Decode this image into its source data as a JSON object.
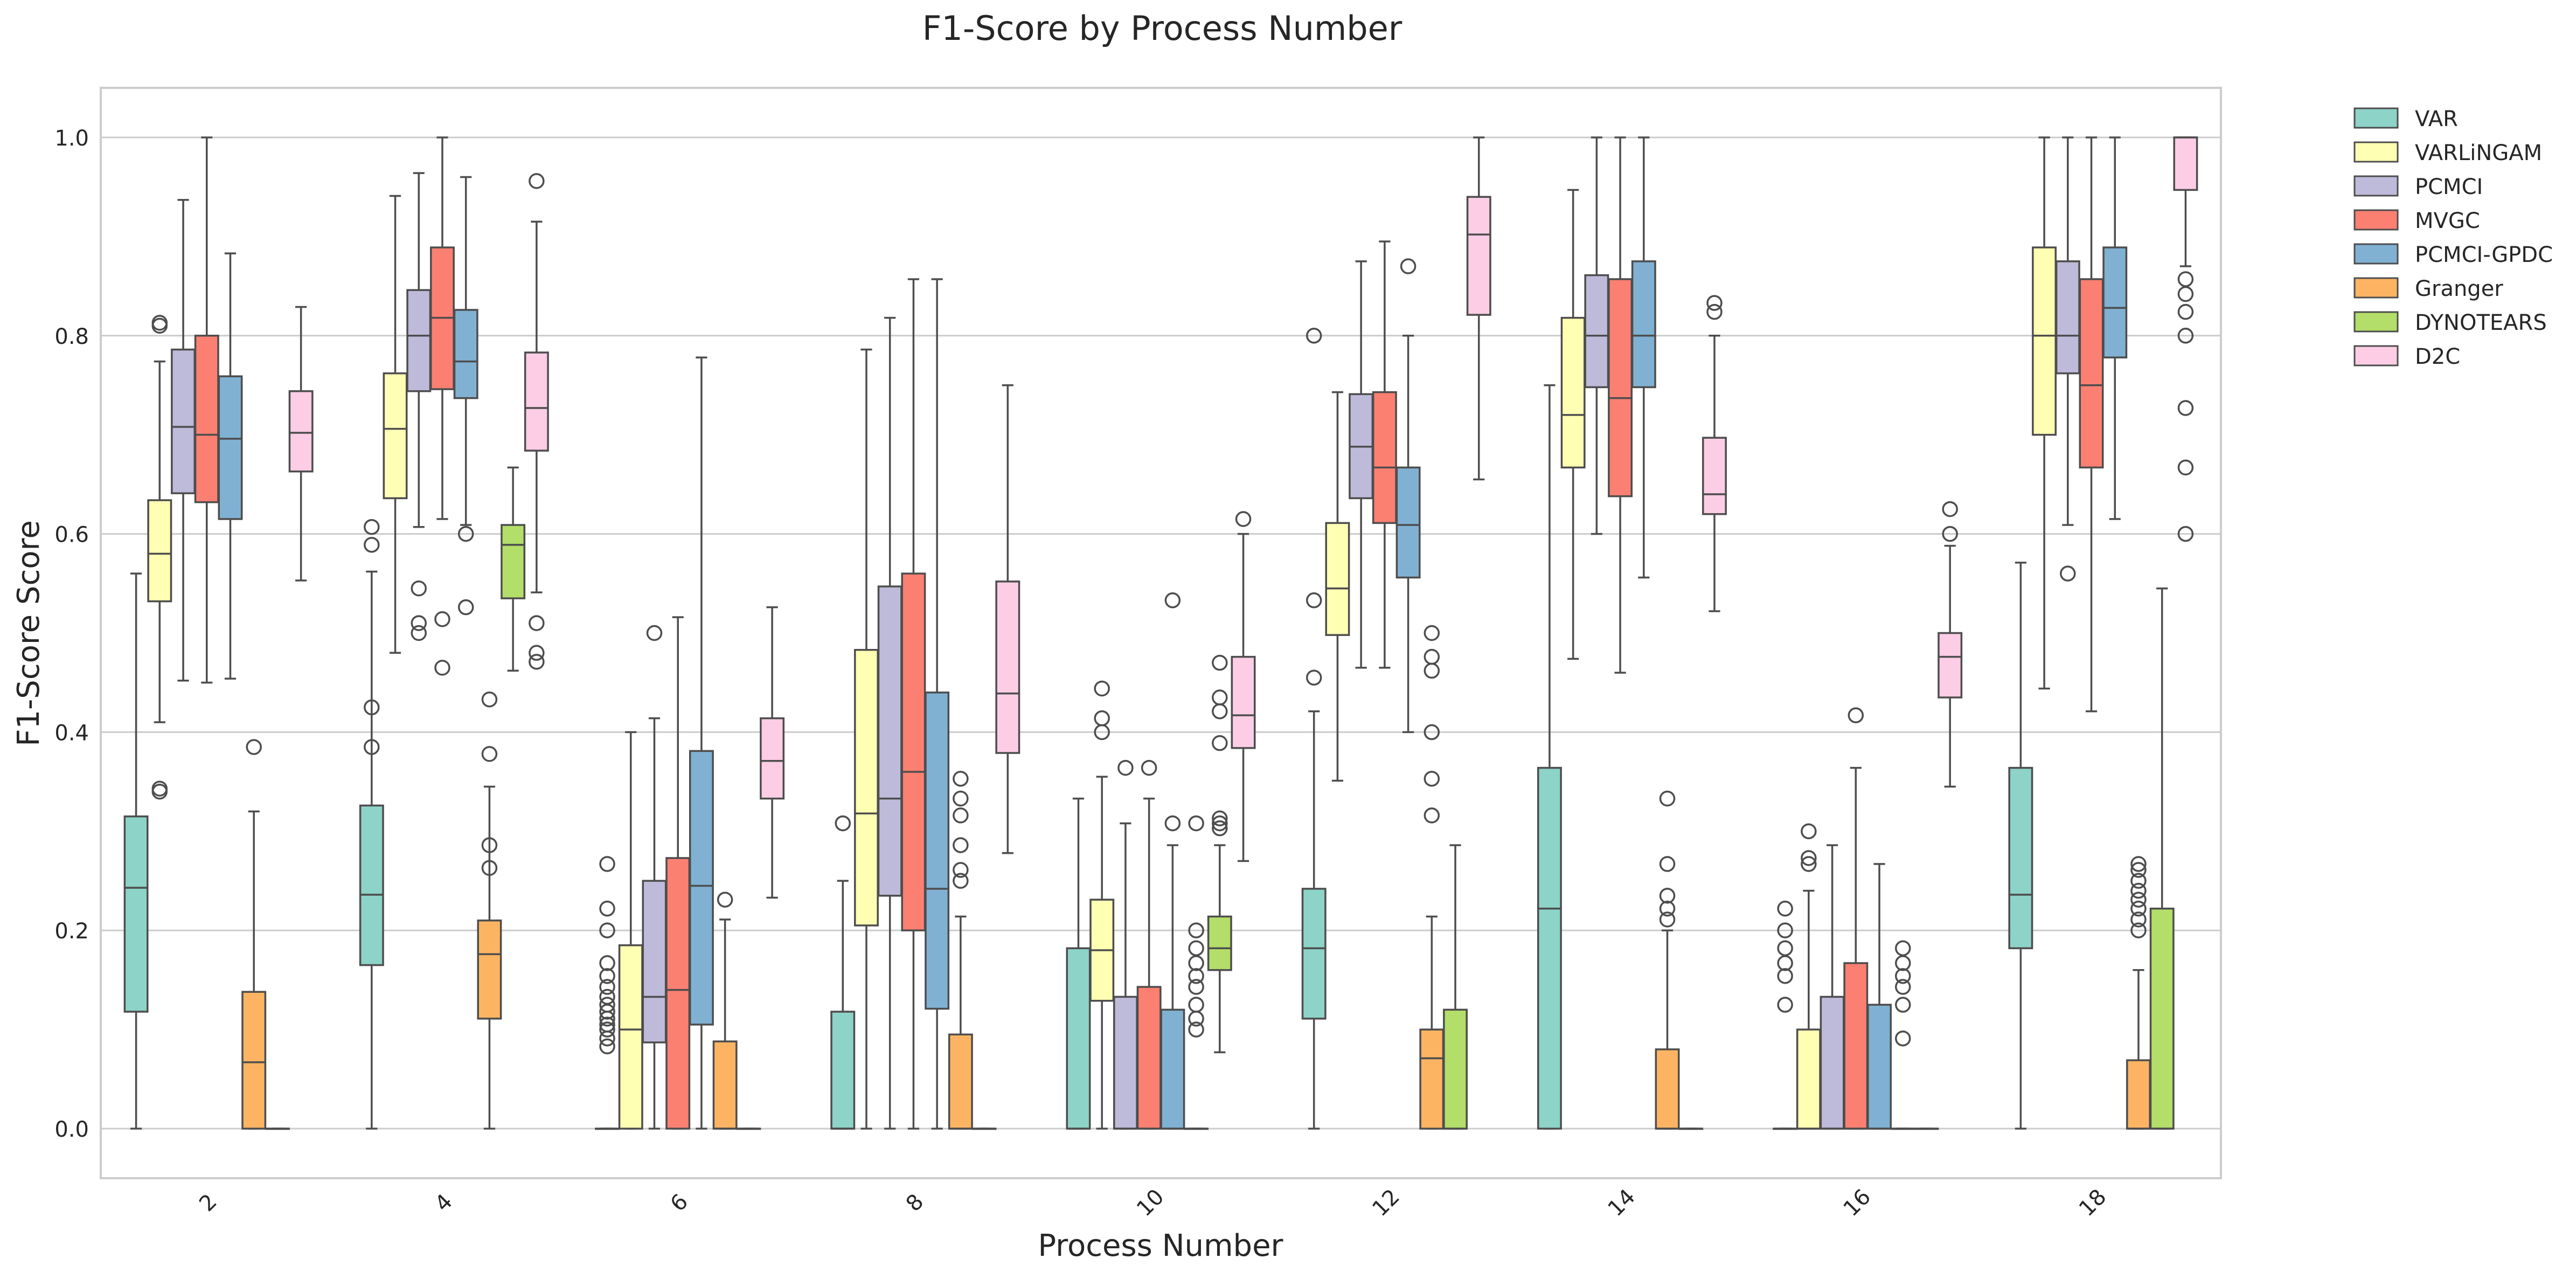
{
  "chart_data": {
    "type": "box",
    "title": "F1-Score by Process Number",
    "xlabel": "Process Number",
    "ylabel": "F1-Score Score",
    "ylim": [
      -0.05,
      1.05
    ],
    "yticks": [
      "0.0",
      "0.2",
      "0.4",
      "0.6",
      "0.8",
      "1.0"
    ],
    "grid": true,
    "legend_position": "outside-top-right",
    "categories": [
      "2",
      "4",
      "6",
      "8",
      "10",
      "12",
      "14",
      "16",
      "18"
    ],
    "series": [
      {
        "name": "VAR",
        "color": "#8dd3c7",
        "boxes": [
          {
            "min": 0.0,
            "q1": 0.118,
            "median": 0.243,
            "q3": 0.315,
            "max": 0.56,
            "outliers": []
          },
          {
            "min": 0.0,
            "q1": 0.165,
            "median": 0.236,
            "q3": 0.326,
            "max": 0.562,
            "outliers": [
              0.607,
              0.589,
              0.425,
              0.385
            ]
          },
          {
            "min": 0.0,
            "q1": 0.0,
            "median": 0.0,
            "q3": 0.0,
            "max": 0.0,
            "outliers": [
              0.267,
              0.222,
              0.2,
              0.167,
              0.154,
              0.143,
              0.133,
              0.125,
              0.118,
              0.111,
              0.105,
              0.1,
              0.091,
              0.083
            ]
          },
          {
            "min": 0.0,
            "q1": 0.0,
            "median": 0.0,
            "q3": 0.118,
            "max": 0.25,
            "outliers": [
              0.308
            ]
          },
          {
            "min": 0.0,
            "q1": 0.0,
            "median": 0.0,
            "q3": 0.182,
            "max": 0.333,
            "outliers": []
          },
          {
            "min": 0.0,
            "q1": 0.111,
            "median": 0.182,
            "q3": 0.242,
            "max": 0.421,
            "outliers": [
              0.8,
              0.533,
              0.455
            ]
          },
          {
            "min": 0.0,
            "q1": 0.0,
            "median": 0.222,
            "q3": 0.364,
            "max": 0.75,
            "outliers": []
          },
          {
            "min": 0.0,
            "q1": 0.0,
            "median": 0.0,
            "q3": 0.0,
            "max": 0.0,
            "outliers": [
              0.222,
              0.2,
              0.182,
              0.167,
              0.154,
              0.125
            ]
          },
          {
            "min": 0.0,
            "q1": 0.182,
            "median": 0.236,
            "q3": 0.364,
            "max": 0.571,
            "outliers": []
          }
        ]
      },
      {
        "name": "VARLiNGAM",
        "color": "#ffffb3",
        "boxes": [
          {
            "min": 0.41,
            "q1": 0.532,
            "median": 0.58,
            "q3": 0.634,
            "max": 0.774,
            "outliers": [
              0.813,
              0.81,
              0.343,
              0.34
            ]
          },
          {
            "min": 0.48,
            "q1": 0.636,
            "median": 0.706,
            "q3": 0.762,
            "max": 0.941,
            "outliers": []
          },
          {
            "min": 0.0,
            "q1": 0.0,
            "median": 0.1,
            "q3": 0.185,
            "max": 0.4,
            "outliers": []
          },
          {
            "min": 0.0,
            "q1": 0.205,
            "median": 0.318,
            "q3": 0.483,
            "max": 0.786,
            "outliers": []
          },
          {
            "min": 0.0,
            "q1": 0.129,
            "median": 0.18,
            "q3": 0.231,
            "max": 0.355,
            "outliers": [
              0.444,
              0.414,
              0.4
            ]
          },
          {
            "min": 0.351,
            "q1": 0.498,
            "median": 0.545,
            "q3": 0.611,
            "max": 0.743,
            "outliers": []
          },
          {
            "min": 0.474,
            "q1": 0.667,
            "median": 0.72,
            "q3": 0.818,
            "max": 0.947,
            "outliers": []
          },
          {
            "min": 0.0,
            "q1": 0.0,
            "median": 0.0,
            "q3": 0.1,
            "max": 0.24,
            "outliers": [
              0.3,
              0.273,
              0.267
            ]
          },
          {
            "min": 0.444,
            "q1": 0.7,
            "median": 0.8,
            "q3": 0.889,
            "max": 1.0,
            "outliers": []
          }
        ]
      },
      {
        "name": "PCMCI",
        "color": "#bebada",
        "boxes": [
          {
            "min": 0.452,
            "q1": 0.641,
            "median": 0.708,
            "q3": 0.786,
            "max": 0.937,
            "outliers": []
          },
          {
            "min": 0.607,
            "q1": 0.744,
            "median": 0.8,
            "q3": 0.846,
            "max": 0.964,
            "outliers": [
              0.545,
              0.51,
              0.5
            ]
          },
          {
            "min": 0.0,
            "q1": 0.087,
            "median": 0.133,
            "q3": 0.25,
            "max": 0.414,
            "outliers": [
              0.5
            ]
          },
          {
            "min": 0.0,
            "q1": 0.235,
            "median": 0.333,
            "q3": 0.547,
            "max": 0.818,
            "outliers": []
          },
          {
            "min": 0.0,
            "q1": 0.0,
            "median": 0.0,
            "q3": 0.133,
            "max": 0.308,
            "outliers": [
              0.364
            ]
          },
          {
            "min": 0.465,
            "q1": 0.636,
            "median": 0.688,
            "q3": 0.741,
            "max": 0.875,
            "outliers": []
          },
          {
            "min": 0.6,
            "q1": 0.748,
            "median": 0.8,
            "q3": 0.861,
            "max": 1.0,
            "outliers": []
          },
          {
            "min": 0.0,
            "q1": 0.0,
            "median": 0.0,
            "q3": 0.133,
            "max": 0.286,
            "outliers": []
          },
          {
            "min": 0.609,
            "q1": 0.762,
            "median": 0.8,
            "q3": 0.875,
            "max": 1.0,
            "outliers": [
              0.56
            ]
          }
        ]
      },
      {
        "name": "MVGC",
        "color": "#fb8072",
        "boxes": [
          {
            "min": 0.45,
            "q1": 0.632,
            "median": 0.7,
            "q3": 0.8,
            "max": 1.0,
            "outliers": []
          },
          {
            "min": 0.615,
            "q1": 0.746,
            "median": 0.818,
            "q3": 0.889,
            "max": 1.0,
            "outliers": [
              0.514,
              0.465
            ]
          },
          {
            "min": 0.0,
            "q1": 0.0,
            "median": 0.14,
            "q3": 0.273,
            "max": 0.516,
            "outliers": []
          },
          {
            "min": 0.0,
            "q1": 0.2,
            "median": 0.36,
            "q3": 0.56,
            "max": 0.857,
            "outliers": []
          },
          {
            "min": 0.0,
            "q1": 0.0,
            "median": 0.0,
            "q3": 0.143,
            "max": 0.333,
            "outliers": [
              0.364
            ]
          },
          {
            "min": 0.465,
            "q1": 0.611,
            "median": 0.667,
            "q3": 0.743,
            "max": 0.895,
            "outliers": []
          },
          {
            "min": 0.46,
            "q1": 0.638,
            "median": 0.737,
            "q3": 0.857,
            "max": 1.0,
            "outliers": []
          },
          {
            "min": 0.0,
            "q1": 0.0,
            "median": 0.0,
            "q3": 0.167,
            "max": 0.364,
            "outliers": [
              0.417
            ]
          },
          {
            "min": 0.421,
            "q1": 0.667,
            "median": 0.75,
            "q3": 0.857,
            "max": 1.0,
            "outliers": []
          }
        ]
      },
      {
        "name": "PCMCI-GPDC",
        "color": "#80b1d3",
        "boxes": [
          {
            "min": 0.454,
            "q1": 0.615,
            "median": 0.696,
            "q3": 0.759,
            "max": 0.883,
            "outliers": []
          },
          {
            "min": 0.609,
            "q1": 0.737,
            "median": 0.774,
            "q3": 0.826,
            "max": 0.96,
            "outliers": [
              0.6,
              0.526
            ]
          },
          {
            "min": 0.0,
            "q1": 0.105,
            "median": 0.245,
            "q3": 0.381,
            "max": 0.778,
            "outliers": []
          },
          {
            "min": 0.0,
            "q1": 0.121,
            "median": 0.242,
            "q3": 0.44,
            "max": 0.857,
            "outliers": []
          },
          {
            "min": 0.0,
            "q1": 0.0,
            "median": 0.0,
            "q3": 0.12,
            "max": 0.286,
            "outliers": [
              0.533,
              0.308
            ]
          },
          {
            "min": 0.4,
            "q1": 0.556,
            "median": 0.609,
            "q3": 0.667,
            "max": 0.8,
            "outliers": [
              0.87
            ]
          },
          {
            "min": 0.556,
            "q1": 0.748,
            "median": 0.8,
            "q3": 0.875,
            "max": 1.0,
            "outliers": []
          },
          {
            "min": 0.0,
            "q1": 0.0,
            "median": 0.0,
            "q3": 0.125,
            "max": 0.267,
            "outliers": []
          },
          {
            "min": 0.615,
            "q1": 0.778,
            "median": 0.828,
            "q3": 0.889,
            "max": 1.0,
            "outliers": []
          }
        ]
      },
      {
        "name": "Granger",
        "color": "#fdb462",
        "boxes": [
          {
            "min": 0.0,
            "q1": 0.0,
            "median": 0.067,
            "q3": 0.138,
            "max": 0.32,
            "outliers": [
              0.385
            ]
          },
          {
            "min": 0.0,
            "q1": 0.111,
            "median": 0.176,
            "q3": 0.21,
            "max": 0.345,
            "outliers": [
              0.433,
              0.378,
              0.286,
              0.263
            ]
          },
          {
            "min": 0.0,
            "q1": 0.0,
            "median": 0.0,
            "q3": 0.088,
            "max": 0.211,
            "outliers": [
              0.231
            ]
          },
          {
            "min": 0.0,
            "q1": 0.0,
            "median": 0.0,
            "q3": 0.095,
            "max": 0.214,
            "outliers": [
              0.353,
              0.333,
              0.316,
              0.286,
              0.261,
              0.25
            ]
          },
          {
            "min": 0.0,
            "q1": 0.0,
            "median": 0.0,
            "q3": 0.0,
            "max": 0.0,
            "outliers": [
              0.308,
              0.2,
              0.182,
              0.167,
              0.154,
              0.143,
              0.125,
              0.111,
              0.1
            ]
          },
          {
            "min": 0.0,
            "q1": 0.0,
            "median": 0.071,
            "q3": 0.1,
            "max": 0.214,
            "outliers": [
              0.5,
              0.476,
              0.462,
              0.4,
              0.353,
              0.316
            ]
          },
          {
            "min": 0.0,
            "q1": 0.0,
            "median": 0.0,
            "q3": 0.08,
            "max": 0.2,
            "outliers": [
              0.333,
              0.267,
              0.235,
              0.222,
              0.211
            ]
          },
          {
            "min": 0.0,
            "q1": 0.0,
            "median": 0.0,
            "q3": 0.0,
            "max": 0.0,
            "outliers": [
              0.182,
              0.167,
              0.154,
              0.143,
              0.125,
              0.091
            ]
          },
          {
            "min": 0.0,
            "q1": 0.0,
            "median": 0.0,
            "q3": 0.069,
            "max": 0.16,
            "outliers": [
              0.267,
              0.261,
              0.25,
              0.24,
              0.231,
              0.222,
              0.211,
              0.2
            ]
          }
        ]
      },
      {
        "name": "DYNOTEARS",
        "color": "#b3de69",
        "boxes": [
          {
            "min": 0.0,
            "q1": 0.0,
            "median": 0.0,
            "q3": 0.0,
            "max": 0.0,
            "outliers": []
          },
          {
            "min": 0.462,
            "q1": 0.535,
            "median": 0.589,
            "q3": 0.609,
            "max": 0.667,
            "outliers": []
          },
          {
            "min": 0.0,
            "q1": 0.0,
            "median": 0.0,
            "q3": 0.0,
            "max": 0.0,
            "outliers": []
          },
          {
            "min": 0.0,
            "q1": 0.0,
            "median": 0.0,
            "q3": 0.0,
            "max": 0.0,
            "outliers": []
          },
          {
            "min": 0.077,
            "q1": 0.16,
            "median": 0.182,
            "q3": 0.214,
            "max": 0.286,
            "outliers": [
              0.47,
              0.435,
              0.421,
              0.389,
              0.313,
              0.308,
              0.303
            ]
          },
          {
            "min": 0.0,
            "q1": 0.0,
            "median": 0.0,
            "q3": 0.12,
            "max": 0.286,
            "outliers": []
          },
          {
            "min": 0.0,
            "q1": 0.0,
            "median": 0.0,
            "q3": 0.0,
            "max": 0.0,
            "outliers": []
          },
          {
            "min": 0.0,
            "q1": 0.0,
            "median": 0.0,
            "q3": 0.0,
            "max": 0.0,
            "outliers": []
          },
          {
            "min": 0.0,
            "q1": 0.0,
            "median": 0.0,
            "q3": 0.222,
            "max": 0.545,
            "outliers": []
          }
        ]
      },
      {
        "name": "D2C",
        "color": "#fccde5",
        "boxes": [
          {
            "min": 0.553,
            "q1": 0.663,
            "median": 0.702,
            "q3": 0.744,
            "max": 0.829,
            "outliers": []
          },
          {
            "min": 0.541,
            "q1": 0.684,
            "median": 0.727,
            "q3": 0.783,
            "max": 0.915,
            "outliers": [
              0.956,
              0.51,
              0.48,
              0.471
            ]
          },
          {
            "min": 0.233,
            "q1": 0.333,
            "median": 0.371,
            "q3": 0.414,
            "max": 0.526,
            "outliers": []
          },
          {
            "min": 0.278,
            "q1": 0.379,
            "median": 0.439,
            "q3": 0.552,
            "max": 0.75,
            "outliers": []
          },
          {
            "min": 0.27,
            "q1": 0.384,
            "median": 0.417,
            "q3": 0.476,
            "max": 0.6,
            "outliers": [
              0.615
            ]
          },
          {
            "min": 0.655,
            "q1": 0.821,
            "median": 0.902,
            "q3": 0.94,
            "max": 1.0,
            "outliers": []
          },
          {
            "min": 0.522,
            "q1": 0.62,
            "median": 0.64,
            "q3": 0.697,
            "max": 0.8,
            "outliers": [
              0.833,
              0.824
            ]
          },
          {
            "min": 0.345,
            "q1": 0.435,
            "median": 0.476,
            "q3": 0.5,
            "max": 0.588,
            "outliers": [
              0.625,
              0.6
            ]
          },
          {
            "min": 0.87,
            "q1": 0.947,
            "median": 1.0,
            "q3": 1.0,
            "max": 1.0,
            "outliers": [
              0.857,
              0.842,
              0.824,
              0.8,
              0.727,
              0.667,
              0.6
            ]
          }
        ]
      }
    ]
  }
}
